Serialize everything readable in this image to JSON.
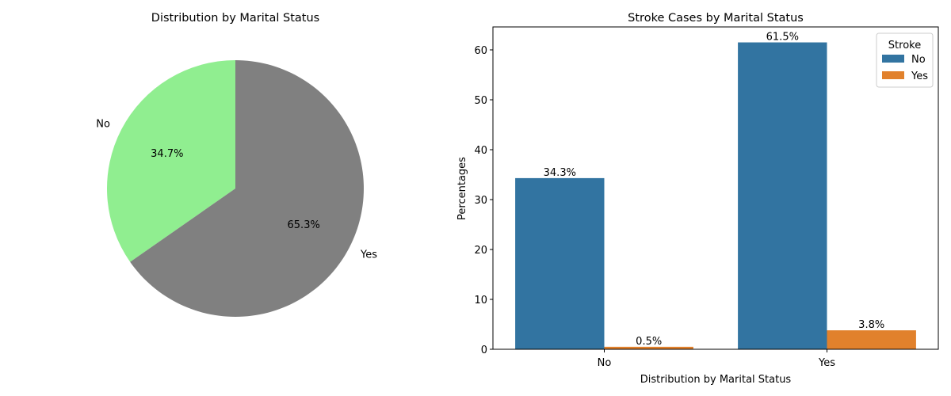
{
  "chart_data": [
    {
      "type": "pie",
      "title": "Distribution by Marital Status",
      "labels": [
        "No",
        "Yes"
      ],
      "values": [
        34.7,
        65.3
      ],
      "value_labels": [
        "34.7%",
        "65.3%"
      ],
      "colors": [
        "#90EE90",
        "#808080"
      ],
      "start_angle_deg": 90
    },
    {
      "type": "bar",
      "title": "Stroke Cases by Marital Status",
      "xlabel": "Distribution by Marital Status",
      "ylabel": "Percentages",
      "categories": [
        "No",
        "Yes"
      ],
      "series": [
        {
          "name": "No",
          "values": [
            34.3,
            61.5
          ],
          "labels": [
            "34.3%",
            "61.5%"
          ],
          "color": "#3274A1"
        },
        {
          "name": "Yes",
          "values": [
            0.5,
            3.8
          ],
          "labels": [
            "0.5%",
            "3.8%"
          ],
          "color": "#E1812C"
        }
      ],
      "ylim": [
        0,
        64.6
      ],
      "yticks": [
        0,
        10,
        20,
        30,
        40,
        50,
        60
      ],
      "legend": {
        "title": "Stroke",
        "position": "upper-right"
      },
      "grid": false
    }
  ]
}
